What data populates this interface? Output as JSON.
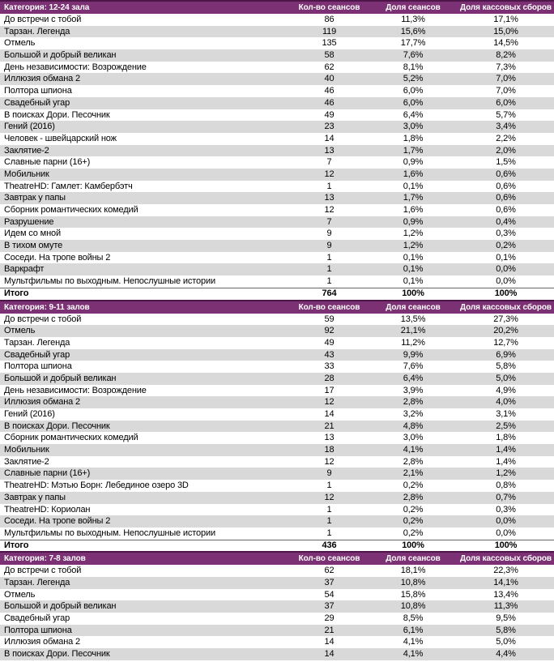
{
  "colors": {
    "header_bg": "#7C3174",
    "header_border": "#4E1549",
    "row_alt_bg": "#D9D9D9",
    "total_border": "#666666"
  },
  "table": {
    "columns": [
      "Кол-во сеансов",
      "Доля сеансов",
      "Доля кассовых сборов"
    ],
    "sections": [
      {
        "category": "Категория: 12-24 зала",
        "rows": [
          [
            "До встречи с тобой",
            "86",
            "11,3%",
            "17,1%"
          ],
          [
            "Тарзан. Легенда",
            "119",
            "15,6%",
            "15,0%"
          ],
          [
            "Отмель",
            "135",
            "17,7%",
            "14,5%"
          ],
          [
            "Большой и добрый великан",
            "58",
            "7,6%",
            "8,2%"
          ],
          [
            "День независимости: Возрождение",
            "62",
            "8,1%",
            "7,3%"
          ],
          [
            "Иллюзия обмана 2",
            "40",
            "5,2%",
            "7,0%"
          ],
          [
            "Полтора шпиона",
            "46",
            "6,0%",
            "7,0%"
          ],
          [
            "Свадебный угар",
            "46",
            "6,0%",
            "6,0%"
          ],
          [
            "В поисках Дори. Песочник",
            "49",
            "6,4%",
            "5,7%"
          ],
          [
            "Гений (2016)",
            "23",
            "3,0%",
            "3,4%"
          ],
          [
            "Человек - швейцарский нож",
            "14",
            "1,8%",
            "2,2%"
          ],
          [
            "Заклятие-2",
            "13",
            "1,7%",
            "2,0%"
          ],
          [
            "Славные парни (16+)",
            "7",
            "0,9%",
            "1,5%"
          ],
          [
            "Мобильник",
            "12",
            "1,6%",
            "0,6%"
          ],
          [
            "TheatreHD: Гамлет: Камбербэтч",
            "1",
            "0,1%",
            "0,6%"
          ],
          [
            "Завтрак у папы",
            "13",
            "1,7%",
            "0,6%"
          ],
          [
            "Сборник романтических комедий",
            "12",
            "1,6%",
            "0,6%"
          ],
          [
            "Разрушение",
            "7",
            "0,9%",
            "0,4%"
          ],
          [
            "Идем со мной",
            "9",
            "1,2%",
            "0,3%"
          ],
          [
            "В тихом омуте",
            "9",
            "1,2%",
            "0,2%"
          ],
          [
            "Соседи. На тропе войны 2",
            "1",
            "0,1%",
            "0,1%"
          ],
          [
            "Варкрафт",
            "1",
            "0,1%",
            "0,0%"
          ],
          [
            "Мультфильмы по выходным. Непослушные истории",
            "1",
            "0,1%",
            "0,0%"
          ]
        ],
        "total": [
          "Итого",
          "764",
          "100%",
          "100%"
        ]
      },
      {
        "category": "Категория: 9-11 залов",
        "rows": [
          [
            "До встречи с тобой",
            "59",
            "13,5%",
            "27,3%"
          ],
          [
            "Отмель",
            "92",
            "21,1%",
            "20,2%"
          ],
          [
            "Тарзан. Легенда",
            "49",
            "11,2%",
            "12,7%"
          ],
          [
            "Свадебный угар",
            "43",
            "9,9%",
            "6,9%"
          ],
          [
            "Полтора шпиона",
            "33",
            "7,6%",
            "5,8%"
          ],
          [
            "Большой и добрый великан",
            "28",
            "6,4%",
            "5,0%"
          ],
          [
            "День независимости: Возрождение",
            "17",
            "3,9%",
            "4,9%"
          ],
          [
            "Иллюзия обмана 2",
            "12",
            "2,8%",
            "4,0%"
          ],
          [
            "Гений (2016)",
            "14",
            "3,2%",
            "3,1%"
          ],
          [
            "В поисках Дори. Песочник",
            "21",
            "4,8%",
            "2,5%"
          ],
          [
            "Сборник романтических комедий",
            "13",
            "3,0%",
            "1,8%"
          ],
          [
            "Мобильник",
            "18",
            "4,1%",
            "1,4%"
          ],
          [
            "Заклятие-2",
            "12",
            "2,8%",
            "1,4%"
          ],
          [
            "Славные парни (16+)",
            "9",
            "2,1%",
            "1,2%"
          ],
          [
            "TheatreHD: Мэтью Борн: Лебединое озеро 3D",
            "1",
            "0,2%",
            "0,8%"
          ],
          [
            "Завтрак у папы",
            "12",
            "2,8%",
            "0,7%"
          ],
          [
            "TheatreHD: Кориолан",
            "1",
            "0,2%",
            "0,3%"
          ],
          [
            "Соседи. На тропе войны 2",
            "1",
            "0,2%",
            "0,0%"
          ],
          [
            "Мультфильмы по выходным. Непослушные истории",
            "1",
            "0,2%",
            "0,0%"
          ]
        ],
        "total": [
          "Итого",
          "436",
          "100%",
          "100%"
        ]
      },
      {
        "category": "Категория: 7-8 залов",
        "rows": [
          [
            "До встречи с тобой",
            "62",
            "18,1%",
            "22,3%"
          ],
          [
            "Тарзан. Легенда",
            "37",
            "10,8%",
            "14,1%"
          ],
          [
            "Отмель",
            "54",
            "15,8%",
            "13,4%"
          ],
          [
            "Большой и добрый великан",
            "37",
            "10,8%",
            "11,3%"
          ],
          [
            "Свадебный угар",
            "29",
            "8,5%",
            "9,5%"
          ],
          [
            "Полтора шпиона",
            "21",
            "6,1%",
            "5,8%"
          ],
          [
            "Иллюзия обмана 2",
            "14",
            "4,1%",
            "5,0%"
          ],
          [
            "В поисках Дори. Песочник",
            "14",
            "4,1%",
            "4,4%"
          ]
        ],
        "total": null
      }
    ]
  }
}
